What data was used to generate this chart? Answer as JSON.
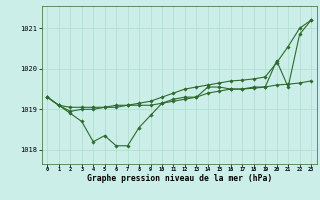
{
  "title": "Graphe pression niveau de la mer (hPa)",
  "background_color": "#cceee8",
  "grid_color": "#aaddcc",
  "line_color": "#2d6a2d",
  "xlim": [
    -0.5,
    23.5
  ],
  "ylim": [
    1017.65,
    1021.55
  ],
  "yticks": [
    1018,
    1019,
    1020,
    1021
  ],
  "xticks": [
    0,
    1,
    2,
    3,
    4,
    5,
    6,
    7,
    8,
    9,
    10,
    11,
    12,
    13,
    14,
    15,
    16,
    17,
    18,
    19,
    20,
    21,
    22,
    23
  ],
  "series1_jagged": {
    "x": [
      0,
      1,
      2,
      3,
      4,
      5,
      6,
      7,
      8,
      9,
      10,
      11,
      12,
      13,
      14,
      15,
      16,
      17,
      18,
      19,
      20,
      21,
      22,
      23
    ],
    "y": [
      1019.3,
      1019.1,
      1018.9,
      1018.7,
      1018.2,
      1018.35,
      1018.1,
      1018.1,
      1018.55,
      1018.85,
      1019.15,
      1019.25,
      1019.3,
      1019.3,
      1019.55,
      1019.55,
      1019.5,
      1019.5,
      1019.55,
      1019.55,
      1020.2,
      1019.55,
      1020.85,
      1021.2
    ]
  },
  "series2_flat": {
    "x": [
      0,
      1,
      2,
      3,
      4,
      5,
      6,
      7,
      8,
      9,
      10,
      11,
      12,
      13,
      14,
      15,
      16,
      17,
      18,
      19,
      20,
      21,
      22,
      23
    ],
    "y": [
      1019.3,
      1019.1,
      1019.05,
      1019.05,
      1019.05,
      1019.05,
      1019.05,
      1019.1,
      1019.1,
      1019.1,
      1019.15,
      1019.2,
      1019.25,
      1019.3,
      1019.4,
      1019.45,
      1019.5,
      1019.5,
      1019.52,
      1019.55,
      1019.6,
      1019.62,
      1019.65,
      1019.7
    ]
  },
  "series3_rising": {
    "x": [
      0,
      1,
      2,
      3,
      4,
      5,
      6,
      7,
      8,
      9,
      10,
      11,
      12,
      13,
      14,
      15,
      16,
      17,
      18,
      19,
      20,
      21,
      22,
      23
    ],
    "y": [
      1019.3,
      1019.1,
      1018.95,
      1019.0,
      1019.0,
      1019.05,
      1019.1,
      1019.1,
      1019.15,
      1019.2,
      1019.3,
      1019.4,
      1019.5,
      1019.55,
      1019.6,
      1019.65,
      1019.7,
      1019.72,
      1019.75,
      1019.8,
      1020.15,
      1020.55,
      1021.0,
      1021.2
    ]
  }
}
